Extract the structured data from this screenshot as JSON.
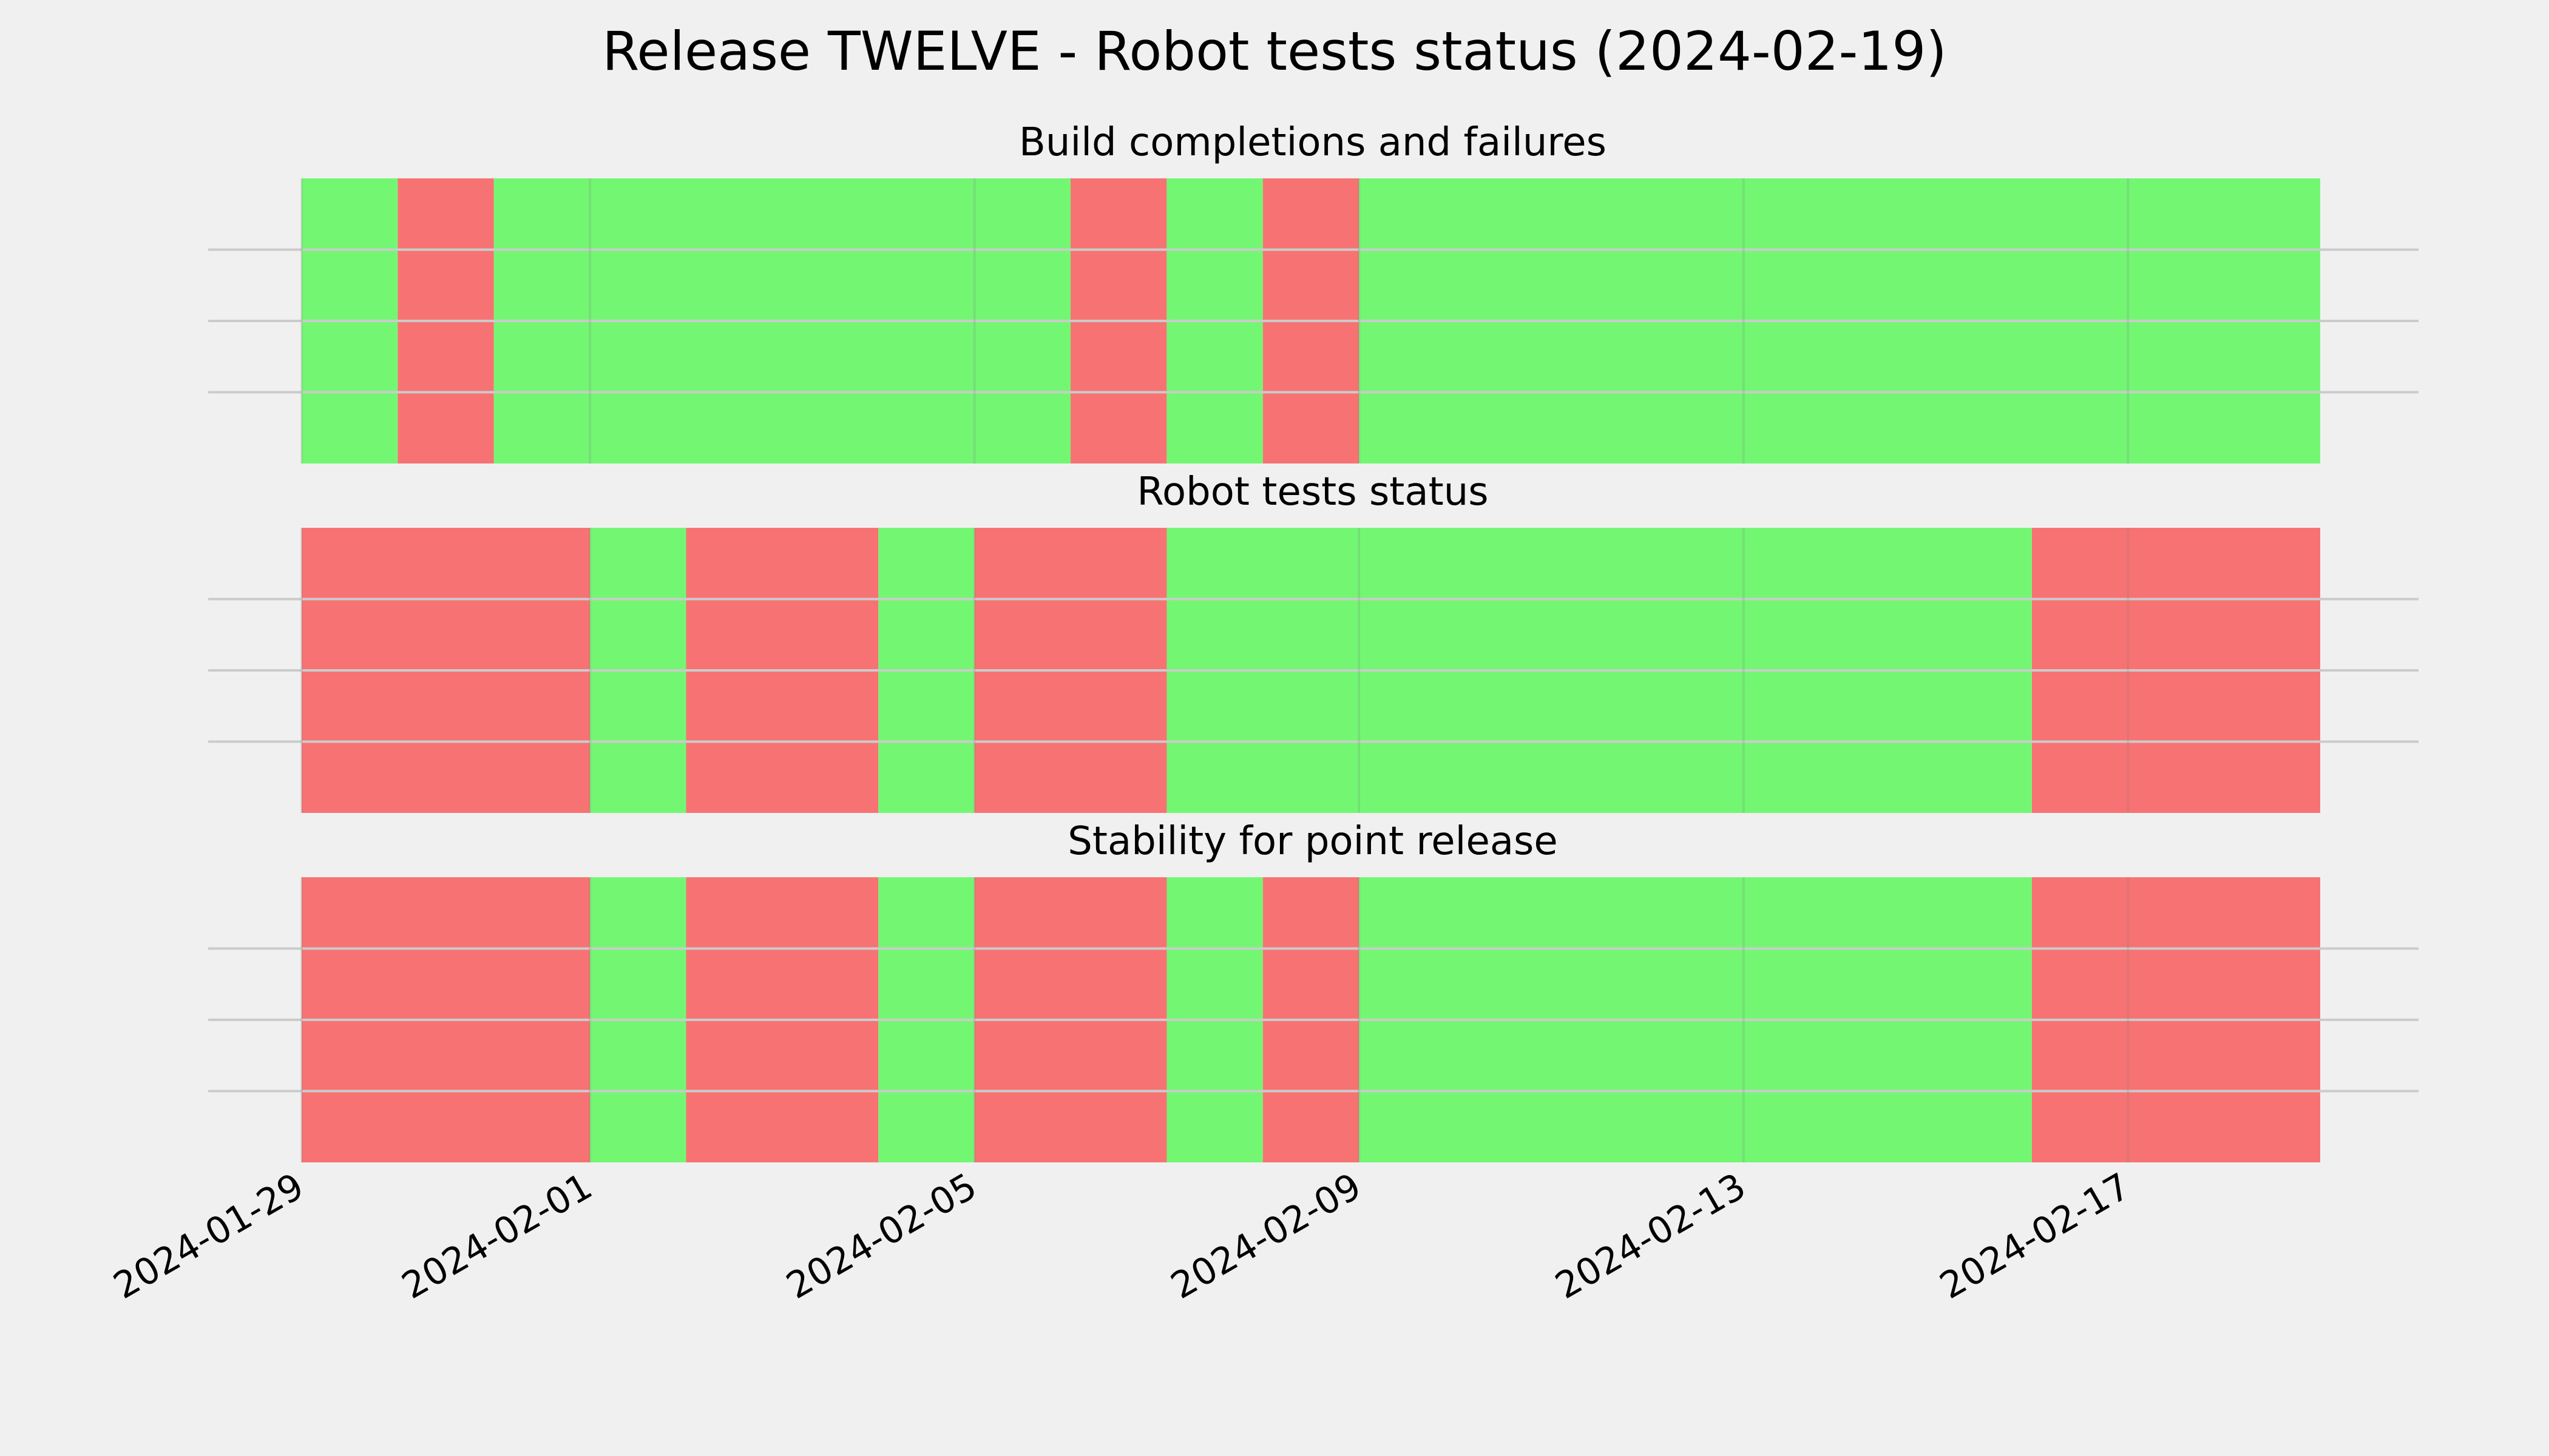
{
  "title": "Release TWELVE - Robot tests status (2024-02-19)",
  "colors": {
    "pass": "#73f773",
    "fail": "#f77373",
    "background": "#f0f0f0",
    "grid": "#cbcbcb"
  },
  "chart_data": {
    "type": "timeline",
    "x_axis": {
      "type": "date",
      "range": [
        "2024-01-29",
        "2024-02-19"
      ],
      "ticks": [
        "2024-01-29",
        "2024-02-01",
        "2024-02-05",
        "2024-02-09",
        "2024-02-13",
        "2024-02-17"
      ],
      "tick_labels": [
        "2024-01-29",
        "2024-02-01",
        "2024-02-05",
        "2024-02-09",
        "2024-02-13",
        "2024-02-17"
      ],
      "tick_label_rotation_deg": 30
    },
    "y_axis": {
      "tick_labels": []
    },
    "grid": true,
    "panels": [
      {
        "title": "Build completions and failures",
        "segments": [
          {
            "start": "2024-01-29",
            "end": "2024-01-30",
            "status": "pass"
          },
          {
            "start": "2024-01-30",
            "end": "2024-01-31",
            "status": "fail"
          },
          {
            "start": "2024-01-31",
            "end": "2024-02-06",
            "status": "pass"
          },
          {
            "start": "2024-02-06",
            "end": "2024-02-07",
            "status": "fail"
          },
          {
            "start": "2024-02-07",
            "end": "2024-02-08",
            "status": "pass"
          },
          {
            "start": "2024-02-08",
            "end": "2024-02-09",
            "status": "fail"
          },
          {
            "start": "2024-02-09",
            "end": "2024-02-19",
            "status": "pass"
          }
        ]
      },
      {
        "title": "Robot tests status",
        "segments": [
          {
            "start": "2024-01-29",
            "end": "2024-02-01",
            "status": "fail"
          },
          {
            "start": "2024-02-01",
            "end": "2024-02-02",
            "status": "pass"
          },
          {
            "start": "2024-02-02",
            "end": "2024-02-04",
            "status": "fail"
          },
          {
            "start": "2024-02-04",
            "end": "2024-02-05",
            "status": "pass"
          },
          {
            "start": "2024-02-05",
            "end": "2024-02-07",
            "status": "fail"
          },
          {
            "start": "2024-02-07",
            "end": "2024-02-16",
            "status": "pass"
          },
          {
            "start": "2024-02-16",
            "end": "2024-02-19",
            "status": "fail"
          }
        ]
      },
      {
        "title": "Stability for point release",
        "segments": [
          {
            "start": "2024-01-29",
            "end": "2024-02-01",
            "status": "fail"
          },
          {
            "start": "2024-02-01",
            "end": "2024-02-02",
            "status": "pass"
          },
          {
            "start": "2024-02-02",
            "end": "2024-02-04",
            "status": "fail"
          },
          {
            "start": "2024-02-04",
            "end": "2024-02-05",
            "status": "pass"
          },
          {
            "start": "2024-02-05",
            "end": "2024-02-07",
            "status": "fail"
          },
          {
            "start": "2024-02-07",
            "end": "2024-02-08",
            "status": "pass"
          },
          {
            "start": "2024-02-08",
            "end": "2024-02-09",
            "status": "fail"
          },
          {
            "start": "2024-02-09",
            "end": "2024-02-16",
            "status": "pass"
          },
          {
            "start": "2024-02-16",
            "end": "2024-02-19",
            "status": "fail"
          }
        ]
      }
    ]
  }
}
